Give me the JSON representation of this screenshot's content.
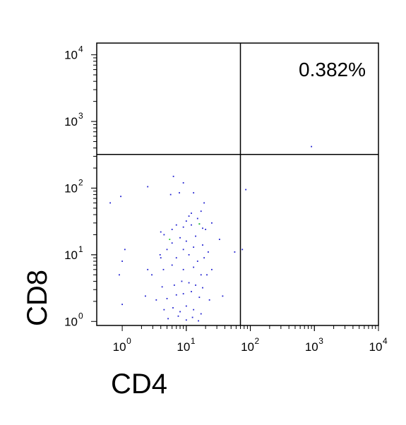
{
  "chart_data": {
    "type": "scatter",
    "title": "",
    "xlabel": "CD4",
    "ylabel": "CD8",
    "xscale": "log",
    "yscale": "log",
    "xlim": [
      0.4,
      10000
    ],
    "ylim": [
      0.87,
      15000
    ],
    "grid": false,
    "legend": "none",
    "x_ticks": [
      {
        "base": "10",
        "exp": "0",
        "value": 1
      },
      {
        "base": "10",
        "exp": "1",
        "value": 10
      },
      {
        "base": "10",
        "exp": "2",
        "value": 100
      },
      {
        "base": "10",
        "exp": "3",
        "value": 1000
      },
      {
        "base": "10",
        "exp": "4",
        "value": 10000
      }
    ],
    "y_ticks": [
      {
        "base": "10",
        "exp": "0",
        "value": 1
      },
      {
        "base": "10",
        "exp": "1",
        "value": 10
      },
      {
        "base": "10",
        "exp": "2",
        "value": 100
      },
      {
        "base": "10",
        "exp": "3",
        "value": 1000
      },
      {
        "base": "10",
        "exp": "4",
        "value": 10000
      }
    ],
    "gates": {
      "x": 70,
      "y": 320
    },
    "quadrant_labels": [
      {
        "text": "0.382%",
        "quadrant": "upper-right"
      }
    ],
    "colors": {
      "points": "#1f1fd0",
      "highlight_points": "#22cc22",
      "axes": "#000000"
    },
    "series": [
      {
        "values": [
          [
            0.65,
            60
          ],
          [
            0.95,
            75
          ],
          [
            2.5,
            105
          ],
          [
            6.3,
            150
          ],
          [
            5.7,
            80
          ],
          [
            7.8,
            85
          ],
          [
            13,
            85
          ],
          [
            19,
            60
          ],
          [
            9,
            120
          ],
          [
            85,
            95
          ],
          [
            75,
            12
          ],
          [
            57,
            11
          ],
          [
            900,
            420
          ],
          [
            1.0,
            8
          ],
          [
            0.9,
            5
          ],
          [
            1.1,
            12
          ],
          [
            1.0,
            1.8
          ],
          [
            2.5,
            6
          ],
          [
            2.3,
            2.4
          ],
          [
            2.9,
            5
          ],
          [
            3.4,
            2.1
          ],
          [
            4.0,
            22
          ],
          [
            4.5,
            20
          ],
          [
            3.9,
            10
          ],
          [
            33,
            17
          ],
          [
            37,
            2.4
          ],
          [
            25,
            30
          ],
          [
            18,
            25
          ],
          [
            17,
            45
          ],
          [
            15,
            35
          ],
          [
            12,
            42
          ],
          [
            11,
            38
          ],
          [
            10,
            32
          ],
          [
            9,
            26
          ],
          [
            7,
            28
          ],
          [
            6,
            24
          ],
          [
            12,
            28
          ],
          [
            16,
            29
          ],
          [
            20,
            24
          ],
          [
            8,
            18
          ],
          [
            14,
            19
          ],
          [
            10,
            16
          ],
          [
            6,
            15
          ],
          [
            18,
            14
          ],
          [
            5,
            12
          ],
          [
            13,
            13
          ],
          [
            9,
            12
          ],
          [
            22,
            11
          ],
          [
            4,
            9
          ],
          [
            7,
            9
          ],
          [
            11,
            10
          ],
          [
            15,
            8
          ],
          [
            19,
            9
          ],
          [
            25,
            6
          ],
          [
            4.4,
            6
          ],
          [
            6,
            7
          ],
          [
            9,
            6
          ],
          [
            13,
            6.5
          ],
          [
            17,
            5
          ],
          [
            21,
            5
          ],
          [
            4.2,
            3.3
          ],
          [
            6.5,
            3.5
          ],
          [
            8.5,
            4
          ],
          [
            11,
            3.8
          ],
          [
            14,
            3.5
          ],
          [
            18,
            3.2
          ],
          [
            5,
            2.2
          ],
          [
            7,
            2.5
          ],
          [
            9,
            2.6
          ],
          [
            12,
            2.8
          ],
          [
            16,
            2.3
          ],
          [
            23,
            2.1
          ],
          [
            4.5,
            1.5
          ],
          [
            6.2,
            1.6
          ],
          [
            8,
            1.4
          ],
          [
            10,
            1.7
          ],
          [
            13,
            1.5
          ],
          [
            17,
            1.3
          ],
          [
            5.2,
            1.1
          ],
          [
            7.5,
            1.2
          ],
          [
            10,
            1.05
          ],
          [
            12.5,
            1.15
          ],
          [
            15.5,
            1.02
          ]
        ]
      },
      {
        "values": [
          [
            5.5,
            17
          ],
          [
            16,
            29
          ]
        ]
      }
    ]
  }
}
